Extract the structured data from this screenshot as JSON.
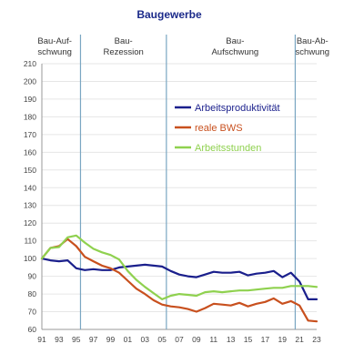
{
  "chart_data": {
    "type": "line",
    "title": "Baugewerbe",
    "colors": {
      "title": "#1b2a8a",
      "grid": "#e6e6e6",
      "phase_line": "#7aa6c2"
    },
    "x_tick_labels": [
      "91",
      "93",
      "95",
      "97",
      "99",
      "01",
      "03",
      "05",
      "07",
      "09",
      "11",
      "13",
      "15",
      "17",
      "19",
      "21",
      "23"
    ],
    "x": [
      1991,
      1992,
      1993,
      1994,
      1995,
      1996,
      1997,
      1998,
      1999,
      2000,
      2001,
      2002,
      2003,
      2004,
      2005,
      2006,
      2007,
      2008,
      2009,
      2010,
      2011,
      2012,
      2013,
      2014,
      2015,
      2016,
      2017,
      2018,
      2019,
      2020,
      2021,
      2022,
      2023
    ],
    "xlim": [
      1991,
      2023
    ],
    "ylim": [
      60,
      210
    ],
    "y_ticks": [
      60,
      70,
      80,
      90,
      100,
      110,
      120,
      130,
      140,
      150,
      160,
      170,
      180,
      190,
      200,
      210
    ],
    "grid": true,
    "legend_position": "right-middle",
    "phases": [
      {
        "label_line1": "Bau-Auf-",
        "label_line2": "schwung",
        "center": 1992.5
      },
      {
        "label_line1": "Bau-",
        "label_line2": "Rezession",
        "center": 2000.5
      },
      {
        "label_line1": "Bau-",
        "label_line2": "Aufschwung",
        "center": 2013.5
      },
      {
        "label_line1": "Bau-Ab-",
        "label_line2": "schwung",
        "center": 2022.5
      }
    ],
    "phase_boundaries": [
      1995.5,
      2005.5,
      2020.5
    ],
    "series": [
      {
        "name": "Arbeitsproduktivität",
        "color": "#1a1f8c",
        "values": [
          100,
          99,
          98.5,
          99,
          94.5,
          93.5,
          94,
          93.5,
          93.5,
          95,
          95.5,
          96,
          96.5,
          96,
          95.5,
          93,
          91,
          90,
          89.5,
          91,
          92.5,
          92,
          92,
          92.5,
          90.5,
          91.5,
          92,
          93,
          89.5,
          92,
          87,
          77,
          77
        ]
      },
      {
        "name": "reale BWS",
        "color": "#c8501e",
        "values": [
          100,
          106,
          107,
          111,
          107,
          101,
          98.5,
          96,
          94.5,
          92,
          87.5,
          83,
          80,
          76.5,
          74,
          73,
          72.5,
          71.5,
          70,
          72,
          74.5,
          74,
          73.5,
          75,
          73,
          74.5,
          75.5,
          77.5,
          74.5,
          76,
          73.5,
          65,
          64.5
        ]
      },
      {
        "name": "Arbeitsstunden",
        "color": "#8fd14f",
        "values": [
          100,
          106,
          106.5,
          112,
          113,
          109,
          105.5,
          103.5,
          102,
          99.5,
          93,
          88,
          84,
          80.5,
          77,
          79,
          80,
          79.5,
          79,
          81,
          81.5,
          81,
          81.5,
          82,
          82,
          82.5,
          83,
          83.5,
          83.5,
          84.5,
          84.5,
          84.5,
          84
        ]
      }
    ]
  }
}
